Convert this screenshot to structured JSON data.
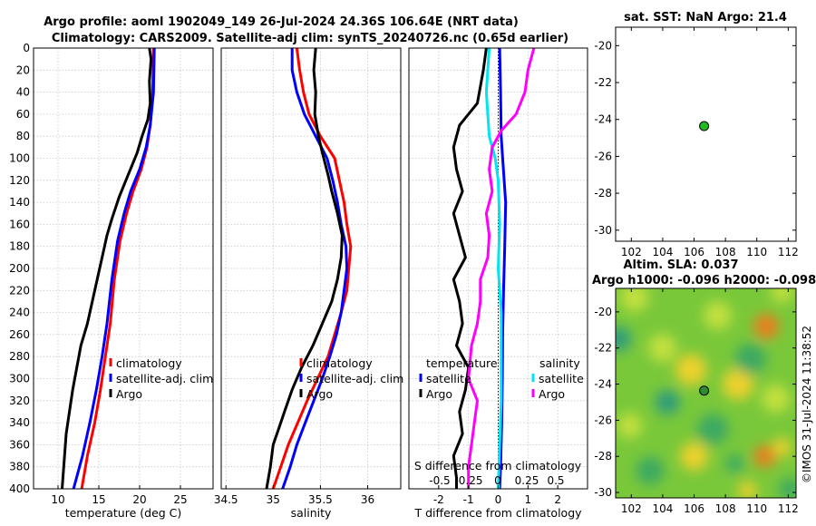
{
  "header": {
    "line1": "Argo profile: aoml 1902049_149 26-Jul-2024 24.36S 106.64E (NRT data)",
    "line2": "Climatology: CARS2009. Satellite-adj clim: synTS_20240726.nc (0.65d earlier)"
  },
  "copyright": "©IMOS 31-Jul-2024 11:38:52",
  "colors": {
    "red": "#ff0000",
    "blue": "#0000ff",
    "black": "#000000",
    "cyan": "#00e5ee",
    "magenta": "#ff00ff"
  },
  "chart_data": [
    {
      "type": "line",
      "name": "temperature-panel",
      "xlabel": "temperature (deg C)",
      "xlim": [
        7,
        29
      ],
      "xticks": [
        10,
        15,
        20,
        25
      ],
      "ylim": [
        400,
        0
      ],
      "yticks": [
        0,
        20,
        40,
        60,
        80,
        100,
        120,
        140,
        160,
        180,
        200,
        220,
        240,
        260,
        280,
        300,
        320,
        340,
        360,
        380,
        400
      ],
      "legend": [
        "climatology",
        "satellite-adj. clim",
        "Argo"
      ],
      "series": [
        {
          "name": "climatology",
          "color": "red",
          "points": [
            [
              21.7,
              0
            ],
            [
              21.6,
              40
            ],
            [
              21.3,
              70
            ],
            [
              20.9,
              90
            ],
            [
              20.2,
              110
            ],
            [
              19.2,
              130
            ],
            [
              18.4,
              150
            ],
            [
              17.6,
              175
            ],
            [
              16.9,
              210
            ],
            [
              16.4,
              250
            ],
            [
              15.8,
              280
            ],
            [
              15.2,
              310
            ],
            [
              14.5,
              340
            ],
            [
              13.6,
              370
            ],
            [
              12.9,
              400
            ]
          ]
        },
        {
          "name": "satellite-adj. clim",
          "color": "blue",
          "points": [
            [
              21.8,
              0
            ],
            [
              21.7,
              40
            ],
            [
              21.3,
              70
            ],
            [
              20.8,
              90
            ],
            [
              20.0,
              110
            ],
            [
              18.9,
              130
            ],
            [
              18.1,
              150
            ],
            [
              17.3,
              175
            ],
            [
              16.6,
              210
            ],
            [
              16.0,
              250
            ],
            [
              15.4,
              280
            ],
            [
              14.7,
              310
            ],
            [
              13.9,
              340
            ],
            [
              13.0,
              370
            ],
            [
              11.9,
              400
            ]
          ]
        },
        {
          "name": "Argo",
          "color": "black",
          "points": [
            [
              21.2,
              0
            ],
            [
              21.4,
              10
            ],
            [
              21.2,
              30
            ],
            [
              21.3,
              50
            ],
            [
              21.0,
              65
            ],
            [
              20.3,
              80
            ],
            [
              19.7,
              95
            ],
            [
              18.6,
              115
            ],
            [
              17.5,
              135
            ],
            [
              16.6,
              155
            ],
            [
              16.0,
              170
            ],
            [
              15.4,
              190
            ],
            [
              14.8,
              210
            ],
            [
              14.2,
              230
            ],
            [
              13.6,
              250
            ],
            [
              12.8,
              270
            ],
            [
              12.3,
              290
            ],
            [
              11.8,
              310
            ],
            [
              11.4,
              330
            ],
            [
              11.0,
              350
            ],
            [
              10.8,
              370
            ],
            [
              10.6,
              390
            ],
            [
              10.5,
              400
            ]
          ]
        }
      ]
    },
    {
      "type": "line",
      "name": "salinity-panel",
      "xlabel": "salinity",
      "xlim": [
        34.45,
        36.35
      ],
      "xticks": [
        34.5,
        35,
        35.5,
        36
      ],
      "ylim": [
        400,
        0
      ],
      "legend": [
        "climatology",
        "satellite-adj. clim",
        "Argo"
      ],
      "series": [
        {
          "name": "climatology",
          "color": "red",
          "points": [
            [
              35.25,
              0
            ],
            [
              35.28,
              20
            ],
            [
              35.32,
              40
            ],
            [
              35.38,
              60
            ],
            [
              35.5,
              80
            ],
            [
              35.65,
              100
            ],
            [
              35.7,
              120
            ],
            [
              35.75,
              140
            ],
            [
              35.78,
              160
            ],
            [
              35.82,
              180
            ],
            [
              35.8,
              200
            ],
            [
              35.78,
              220
            ],
            [
              35.72,
              240
            ],
            [
              35.65,
              260
            ],
            [
              35.58,
              280
            ],
            [
              35.47,
              300
            ],
            [
              35.36,
              320
            ],
            [
              35.26,
              340
            ],
            [
              35.16,
              360
            ],
            [
              35.08,
              380
            ],
            [
              35.0,
              400
            ]
          ]
        },
        {
          "name": "satellite-adj. clim",
          "color": "blue",
          "points": [
            [
              35.2,
              0
            ],
            [
              35.2,
              20
            ],
            [
              35.25,
              40
            ],
            [
              35.33,
              60
            ],
            [
              35.45,
              80
            ],
            [
              35.57,
              100
            ],
            [
              35.63,
              120
            ],
            [
              35.68,
              140
            ],
            [
              35.72,
              160
            ],
            [
              35.77,
              180
            ],
            [
              35.78,
              200
            ],
            [
              35.75,
              220
            ],
            [
              35.72,
              240
            ],
            [
              35.67,
              260
            ],
            [
              35.6,
              280
            ],
            [
              35.52,
              300
            ],
            [
              35.43,
              320
            ],
            [
              35.34,
              340
            ],
            [
              35.25,
              360
            ],
            [
              35.18,
              380
            ],
            [
              35.1,
              400
            ]
          ]
        },
        {
          "name": "Argo",
          "color": "black",
          "points": [
            [
              35.45,
              0
            ],
            [
              35.43,
              20
            ],
            [
              35.45,
              40
            ],
            [
              35.44,
              60
            ],
            [
              35.48,
              80
            ],
            [
              35.52,
              95
            ],
            [
              35.58,
              115
            ],
            [
              35.62,
              130
            ],
            [
              35.68,
              150
            ],
            [
              35.73,
              170
            ],
            [
              35.72,
              190
            ],
            [
              35.68,
              210
            ],
            [
              35.62,
              230
            ],
            [
              35.52,
              250
            ],
            [
              35.42,
              270
            ],
            [
              35.3,
              290
            ],
            [
              35.2,
              310
            ],
            [
              35.12,
              330
            ],
            [
              35.06,
              345
            ],
            [
              35.0,
              360
            ],
            [
              34.97,
              380
            ],
            [
              34.93,
              400
            ]
          ]
        }
      ]
    },
    {
      "type": "line",
      "name": "difference-panel",
      "xlabel": "T difference from climatology",
      "xlim": [
        -3,
        3
      ],
      "xticks": [
        -2,
        -1,
        0,
        1,
        2
      ],
      "secondary_xlabel": "S difference from climatology",
      "secondary_ticks": [
        "-0.5",
        "-0.25",
        "0",
        "0.25",
        "0.5"
      ],
      "ylim": [
        400,
        0
      ],
      "legend_temperature_title": "temperature",
      "legend_salinity_title": "salinity",
      "legend_temperature": [
        "satellite",
        "Argo"
      ],
      "legend_salinity": [
        "satellite",
        "Argo"
      ],
      "series": [
        {
          "name": "temperature satellite",
          "color": "blue",
          "points": [
            [
              0.05,
              0
            ],
            [
              0.08,
              40
            ],
            [
              0.1,
              80
            ],
            [
              0.15,
              100
            ],
            [
              0.25,
              140
            ],
            [
              0.22,
              180
            ],
            [
              0.18,
              220
            ],
            [
              0.15,
              260
            ],
            [
              0.14,
              300
            ],
            [
              0.12,
              340
            ],
            [
              0.08,
              380
            ],
            [
              0.05,
              400
            ]
          ]
        },
        {
          "name": "temperature Argo",
          "color": "black",
          "points": [
            [
              -0.4,
              0
            ],
            [
              -0.5,
              20
            ],
            [
              -0.7,
              50
            ],
            [
              -1.3,
              70
            ],
            [
              -1.5,
              90
            ],
            [
              -1.4,
              110
            ],
            [
              -1.2,
              130
            ],
            [
              -1.5,
              150
            ],
            [
              -1.3,
              170
            ],
            [
              -1.1,
              190
            ],
            [
              -1.5,
              210
            ],
            [
              -1.3,
              230
            ],
            [
              -1.2,
              250
            ],
            [
              -1.4,
              270
            ],
            [
              -1.0,
              290
            ],
            [
              -1.1,
              310
            ],
            [
              -1.3,
              330
            ],
            [
              -1.2,
              350
            ],
            [
              -1.5,
              370
            ],
            [
              -1.4,
              390
            ],
            [
              -1.4,
              400
            ]
          ]
        },
        {
          "name": "salinity satellite",
          "color": "cyan",
          "points": [
            [
              -0.3,
              0
            ],
            [
              -0.35,
              20
            ],
            [
              -0.4,
              40
            ],
            [
              -0.35,
              60
            ],
            [
              -0.3,
              80
            ],
            [
              -0.1,
              100
            ],
            [
              0.0,
              120
            ],
            [
              0.05,
              160
            ],
            [
              0.0,
              200
            ],
            [
              0.1,
              240
            ],
            [
              0.1,
              280
            ],
            [
              0.1,
              320
            ],
            [
              0.05,
              360
            ],
            [
              0.0,
              400
            ]
          ]
        },
        {
          "name": "salinity Argo",
          "color": "magenta",
          "points": [
            [
              1.2,
              0
            ],
            [
              1.0,
              20
            ],
            [
              0.9,
              40
            ],
            [
              0.6,
              60
            ],
            [
              0.1,
              75
            ],
            [
              -0.2,
              90
            ],
            [
              -0.3,
              110
            ],
            [
              -0.2,
              130
            ],
            [
              -0.4,
              150
            ],
            [
              -0.3,
              170
            ],
            [
              -0.35,
              190
            ],
            [
              -0.6,
              210
            ],
            [
              -0.6,
              230
            ],
            [
              -0.7,
              250
            ],
            [
              -0.9,
              270
            ],
            [
              -1.0,
              300
            ],
            [
              -0.7,
              320
            ],
            [
              -0.8,
              340
            ],
            [
              -0.9,
              360
            ],
            [
              -1.0,
              380
            ],
            [
              -1.0,
              400
            ]
          ]
        }
      ]
    },
    {
      "type": "scatter",
      "name": "sst-map",
      "title": "sat. SST: NaN Argo: 21.4",
      "xlim": [
        101,
        112.5
      ],
      "ylim": [
        -30.6,
        -19
      ],
      "xticks": [
        102,
        104,
        106,
        108,
        110,
        112
      ],
      "yticks": [
        -20,
        -22,
        -24,
        -26,
        -28,
        -30
      ],
      "points": [
        [
          106.64,
          -24.36
        ]
      ]
    },
    {
      "type": "heatmap",
      "name": "sla-map",
      "title": "Altim. SLA: 0.037",
      "subtitle": "Argo h1000: -0.096 h2000: -0.098",
      "xlim": [
        101,
        112.5
      ],
      "ylim": [
        -30.3,
        -18.7
      ],
      "xticks": [
        102,
        104,
        106,
        108,
        110,
        112
      ],
      "yticks": [
        -20,
        -22,
        -24,
        -26,
        -28,
        -30
      ],
      "points": [
        [
          106.64,
          -24.36
        ]
      ],
      "blobs": [
        {
          "lon": 110.6,
          "lat": -20.8,
          "amp": 0.85,
          "r": 0.8
        },
        {
          "lon": 111.6,
          "lat": -18.9,
          "amp": 0.45,
          "r": 0.7
        },
        {
          "lon": 105.8,
          "lat": -23.2,
          "amp": 0.55,
          "r": 1.0
        },
        {
          "lon": 104.0,
          "lat": -22.0,
          "amp": 0.45,
          "r": 0.9
        },
        {
          "lon": 101.2,
          "lat": -21.5,
          "amp": -0.6,
          "r": 0.8
        },
        {
          "lon": 104.3,
          "lat": -25.0,
          "amp": -0.75,
          "r": 0.8
        },
        {
          "lon": 107.2,
          "lat": -26.5,
          "amp": -0.35,
          "r": 1.0
        },
        {
          "lon": 101.9,
          "lat": -26.3,
          "amp": 0.4,
          "r": 0.8
        },
        {
          "lon": 103.2,
          "lat": -28.8,
          "amp": -0.4,
          "r": 0.9
        },
        {
          "lon": 106.0,
          "lat": -28.0,
          "amp": 0.5,
          "r": 0.9
        },
        {
          "lon": 108.8,
          "lat": -24.0,
          "amp": 0.5,
          "r": 1.0
        },
        {
          "lon": 111.2,
          "lat": -24.8,
          "amp": 0.45,
          "r": 0.9
        },
        {
          "lon": 110.5,
          "lat": -28.0,
          "amp": 1.0,
          "r": 0.7
        },
        {
          "lon": 111.6,
          "lat": -27.5,
          "amp": 0.6,
          "r": 0.6
        },
        {
          "lon": 108.6,
          "lat": -28.4,
          "amp": -0.55,
          "r": 0.6
        },
        {
          "lon": 109.4,
          "lat": -29.9,
          "amp": 0.7,
          "r": 0.6
        },
        {
          "lon": 109.6,
          "lat": -22.6,
          "amp": -0.35,
          "r": 1.0
        },
        {
          "lon": 102.2,
          "lat": -19.2,
          "amp": 0.3,
          "r": 0.9
        },
        {
          "lon": 107.5,
          "lat": -20.2,
          "amp": 0.35,
          "r": 0.9
        },
        {
          "lon": 112.1,
          "lat": -29.8,
          "amp": -0.35,
          "r": 0.7
        }
      ]
    }
  ]
}
